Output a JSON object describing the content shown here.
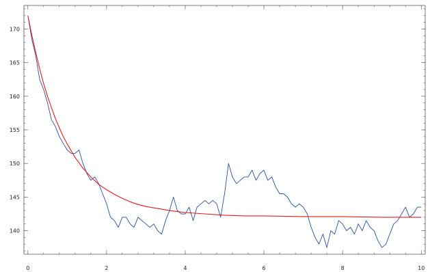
{
  "chart_data": {
    "type": "line",
    "title": "",
    "xlabel": "",
    "ylabel": "",
    "xlim": [
      -0.1,
      10.1
    ],
    "ylim": [
      136.5,
      173.5
    ],
    "x_ticks": [
      0,
      2,
      4,
      6,
      8,
      10
    ],
    "x_tick_labels": [
      "0",
      "2",
      "4",
      "6",
      "8",
      "10"
    ],
    "x_minor_step": 0.4,
    "y_ticks": [
      140,
      145,
      150,
      155,
      160,
      165,
      170
    ],
    "y_tick_labels": [
      "140",
      "145",
      "150",
      "155",
      "160",
      "165",
      "170"
    ],
    "y_minor_step": 1,
    "grid": false,
    "legend": "none",
    "series": [
      {
        "color": "#2a4f9c",
        "x": [
          0,
          0.1,
          0.2,
          0.3,
          0.4,
          0.5,
          0.6,
          0.7,
          0.8,
          0.9,
          1.0,
          1.1,
          1.2,
          1.3,
          1.4,
          1.5,
          1.6,
          1.7,
          1.8,
          1.9,
          2.0,
          2.1,
          2.2,
          2.3,
          2.4,
          2.5,
          2.6,
          2.7,
          2.8,
          2.9,
          3.0,
          3.1,
          3.2,
          3.3,
          3.4,
          3.5,
          3.6,
          3.7,
          3.8,
          3.9,
          4.0,
          4.1,
          4.2,
          4.3,
          4.4,
          4.5,
          4.6,
          4.7,
          4.8,
          4.9,
          5.0,
          5.1,
          5.2,
          5.3,
          5.4,
          5.5,
          5.6,
          5.7,
          5.8,
          5.9,
          6.0,
          6.1,
          6.2,
          6.3,
          6.4,
          6.5,
          6.6,
          6.7,
          6.8,
          6.9,
          7.0,
          7.1,
          7.2,
          7.3,
          7.4,
          7.5,
          7.6,
          7.7,
          7.8,
          7.9,
          8.0,
          8.1,
          8.2,
          8.3,
          8.4,
          8.5,
          8.6,
          8.7,
          8.8,
          8.9,
          9.0,
          9.1,
          9.2,
          9.3,
          9.4,
          9.5,
          9.6,
          9.7,
          9.8,
          9.9,
          10.0
        ],
        "y": [
          172,
          168.5,
          166,
          162.5,
          161,
          159,
          156.5,
          155.5,
          154,
          153,
          152,
          151.5,
          151.5,
          152,
          150,
          148.5,
          147.5,
          148,
          147,
          145.5,
          144,
          142,
          141.5,
          140.5,
          142,
          142,
          141,
          140.5,
          142,
          141.5,
          141,
          140.5,
          141,
          140,
          139.5,
          141.5,
          143,
          145,
          143,
          142.5,
          142.5,
          143.5,
          141.5,
          143.5,
          144,
          144.5,
          144,
          144.5,
          144,
          142,
          145.5,
          150,
          148,
          147,
          147.5,
          148,
          148,
          149,
          147.5,
          148.5,
          149,
          147.5,
          148,
          146.5,
          145.5,
          145.5,
          145,
          144,
          143.5,
          144,
          143.5,
          142.5,
          140.5,
          139,
          138,
          139.5,
          137.5,
          140,
          139.5,
          141.5,
          141,
          140,
          140.5,
          139.5,
          141,
          140,
          141.5,
          140.5,
          140,
          138.5,
          137.5,
          138,
          139.5,
          141,
          141.5,
          142.5,
          143.5,
          142,
          142.5,
          143.5,
          143.5
        ]
      },
      {
        "color": "#e41a1c",
        "x": [
          0,
          0.1,
          0.2,
          0.3,
          0.4,
          0.5,
          0.6,
          0.7,
          0.8,
          0.9,
          1.0,
          1.2,
          1.4,
          1.6,
          1.8,
          2.0,
          2.2,
          2.4,
          2.6,
          2.8,
          3.0,
          3.3,
          3.6,
          4.0,
          4.5,
          5.0,
          5.5,
          6.0,
          7.0,
          8.0,
          9.0,
          10.0
        ],
        "y": [
          172,
          169.1,
          166.5,
          164.1,
          161.9,
          160,
          158.3,
          156.7,
          155.3,
          154,
          152.9,
          150.9,
          149.3,
          148,
          146.9,
          146.1,
          145.4,
          144.8,
          144.3,
          143.9,
          143.6,
          143.3,
          143,
          142.7,
          142.5,
          142.3,
          142.2,
          142.2,
          142.1,
          142.1,
          142,
          142
        ]
      }
    ]
  }
}
